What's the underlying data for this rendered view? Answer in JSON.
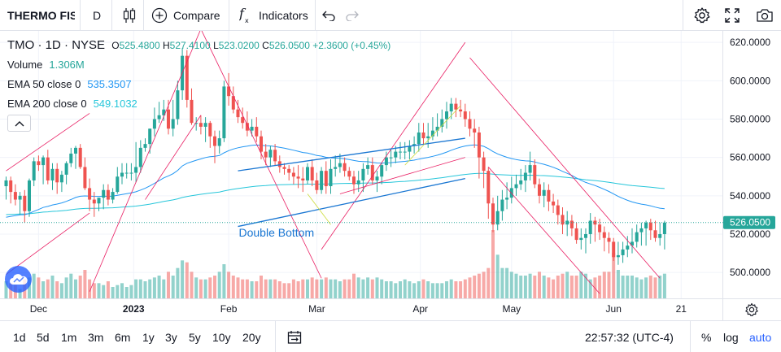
{
  "toolbar": {
    "symbol": "THERMO FISHER",
    "interval": "D",
    "compare_label": "Compare",
    "indicators_label": "Indicators"
  },
  "legend": {
    "ticker": "TMO",
    "timeframe": "1D",
    "exchange": "NYSE",
    "open_label": "O",
    "open": "525.4800",
    "high_label": "H",
    "high": "527.4100",
    "low_label": "L",
    "low": "523.0200",
    "close_label": "C",
    "close": "526.0500",
    "change": "+2.3600 (+0.45%)",
    "volume_label": "Volume",
    "volume": "1.306M",
    "ema50_label": "EMA 50 close 0",
    "ema50": "535.3507",
    "ema200_label": "EMA 200 close 0",
    "ema200": "549.1032"
  },
  "bottombar": {
    "ranges": [
      "1d",
      "5d",
      "1m",
      "3m",
      "6m",
      "1y",
      "3y",
      "5y",
      "10y",
      "20y"
    ],
    "clock": "22:57:32 (UTC-4)",
    "percent_label": "%",
    "log_label": "log",
    "auto_label": "auto"
  },
  "colors": {
    "up": "#26a69a",
    "down": "#ef5350",
    "ema50": "#2196f3",
    "ema200": "#26c6da",
    "trendline_pink": "#e91e63",
    "trendline_blue": "#1976d2",
    "accent": "#2962ff"
  },
  "chart_data": {
    "type": "candlestick",
    "series_name": "TMO",
    "y_axis": {
      "ticks": [
        "620.0000",
        "600.0000",
        "580.0000",
        "560.0000",
        "540.0000",
        "520.0000",
        "500.0000"
      ],
      "ylim": [
        486.5,
        626
      ]
    },
    "x_axis": {
      "labels": [
        "Dec",
        "2023",
        "Feb",
        "Mar",
        "Apr",
        "May",
        "Jun",
        "21"
      ],
      "label_dates": [
        "2022-12-01",
        "2023-01-01",
        "2023-02-01",
        "2023-03-01",
        "2023-04-01",
        "2023-05-01",
        "2023-06-01",
        "2023-06-21"
      ]
    },
    "last_price_label": "526.0500",
    "annotation": "Double Bottom",
    "dates": [
      "2022-11-21",
      "2022-11-22",
      "2022-11-23",
      "2022-11-25",
      "2022-11-28",
      "2022-11-29",
      "2022-11-30",
      "2022-12-01",
      "2022-12-02",
      "2022-12-05",
      "2022-12-06",
      "2022-12-07",
      "2022-12-08",
      "2022-12-09",
      "2022-12-12",
      "2022-12-13",
      "2022-12-14",
      "2022-12-15",
      "2022-12-16",
      "2022-12-19",
      "2022-12-20",
      "2022-12-21",
      "2022-12-22",
      "2022-12-23",
      "2022-12-27",
      "2022-12-28",
      "2022-12-29",
      "2022-12-30",
      "2023-01-03",
      "2023-01-04",
      "2023-01-05",
      "2023-01-06",
      "2023-01-09",
      "2023-01-10",
      "2023-01-11",
      "2023-01-12",
      "2023-01-13",
      "2023-01-17",
      "2023-01-18",
      "2023-01-19",
      "2023-01-20",
      "2023-01-23",
      "2023-01-24",
      "2023-01-25",
      "2023-01-26",
      "2023-01-27",
      "2023-01-30",
      "2023-01-31",
      "2023-02-01",
      "2023-02-02",
      "2023-02-03",
      "2023-02-06",
      "2023-02-07",
      "2023-02-08",
      "2023-02-09",
      "2023-02-10",
      "2023-02-13",
      "2023-02-14",
      "2023-02-15",
      "2023-02-16",
      "2023-02-17",
      "2023-02-21",
      "2023-02-22",
      "2023-02-23",
      "2023-02-24",
      "2023-02-27",
      "2023-02-28",
      "2023-03-01",
      "2023-03-02",
      "2023-03-03",
      "2023-03-06",
      "2023-03-07",
      "2023-03-08",
      "2023-03-09",
      "2023-03-10",
      "2023-03-13",
      "2023-03-14",
      "2023-03-15",
      "2023-03-16",
      "2023-03-17",
      "2023-03-20",
      "2023-03-21",
      "2023-03-22",
      "2023-03-23",
      "2023-03-24",
      "2023-03-27",
      "2023-03-28",
      "2023-03-29",
      "2023-03-30",
      "2023-03-31",
      "2023-04-03",
      "2023-04-04",
      "2023-04-05",
      "2023-04-06",
      "2023-04-10",
      "2023-04-11",
      "2023-04-12",
      "2023-04-13",
      "2023-04-14",
      "2023-04-17",
      "2023-04-18",
      "2023-04-19",
      "2023-04-20",
      "2023-04-21",
      "2023-04-24",
      "2023-04-25",
      "2023-04-26",
      "2023-04-27",
      "2023-04-28",
      "2023-05-01",
      "2023-05-02",
      "2023-05-03",
      "2023-05-04",
      "2023-05-05",
      "2023-05-08",
      "2023-05-09",
      "2023-05-10",
      "2023-05-11",
      "2023-05-12",
      "2023-05-15",
      "2023-05-16",
      "2023-05-17",
      "2023-05-18",
      "2023-05-19",
      "2023-05-22",
      "2023-05-23",
      "2023-05-24",
      "2023-05-25",
      "2023-05-26",
      "2023-05-30",
      "2023-05-31",
      "2023-06-01",
      "2023-06-02",
      "2023-06-05",
      "2023-06-06",
      "2023-06-07",
      "2023-06-08",
      "2023-06-09",
      "2023-06-12",
      "2023-06-13",
      "2023-06-14",
      "2023-06-15",
      "2023-06-16"
    ],
    "open": [
      545,
      548,
      542,
      538,
      540,
      532,
      548,
      558,
      556,
      560,
      548,
      554,
      547,
      551,
      557,
      562,
      565,
      555,
      544,
      538,
      536,
      539,
      543,
      538,
      542,
      550,
      552,
      552,
      552,
      555,
      565,
      567,
      575,
      580,
      582,
      585,
      575,
      580,
      595,
      613,
      590,
      578,
      578,
      576,
      578,
      571,
      566,
      570,
      597,
      592,
      585,
      581,
      578,
      574,
      576,
      571,
      563,
      560,
      564,
      558,
      555,
      554,
      552,
      550,
      549,
      548,
      555,
      548,
      543,
      553,
      545,
      554,
      555,
      557,
      553,
      550,
      546,
      548,
      554,
      556,
      548,
      550,
      556,
      560,
      560,
      563,
      563,
      563,
      566,
      567,
      573,
      570,
      571,
      574,
      576,
      580,
      584,
      588,
      585,
      584,
      580,
      575,
      573,
      560,
      553,
      536,
      525,
      532,
      538,
      539,
      544,
      546,
      548,
      552,
      556,
      546,
      540,
      543,
      537,
      535,
      530,
      525,
      527,
      523,
      517,
      518,
      520,
      527,
      525,
      521,
      518,
      516,
      508,
      509,
      512,
      514,
      516,
      521,
      523,
      526,
      522,
      518,
      520
    ],
    "high": [
      550,
      550,
      546,
      542,
      543,
      549,
      560,
      561,
      561,
      564,
      557,
      557,
      553,
      558,
      565,
      566,
      567,
      560,
      549,
      542,
      538,
      546,
      546,
      544,
      555,
      557,
      557,
      557,
      568,
      569,
      570,
      575,
      586,
      589,
      590,
      590,
      590,
      600,
      617,
      616,
      596,
      581,
      582,
      581,
      579,
      574,
      574,
      600,
      604,
      597,
      590,
      586,
      584,
      580,
      581,
      574,
      567,
      566,
      567,
      561,
      557,
      556,
      555,
      556,
      555,
      557,
      559,
      552,
      555,
      558,
      559,
      561,
      562,
      560,
      555,
      553,
      553,
      557,
      560,
      560,
      553,
      557,
      563,
      564,
      566,
      568,
      568,
      569,
      571,
      578,
      578,
      578,
      581,
      583,
      585,
      589,
      591,
      591,
      590,
      588,
      584,
      580,
      576,
      563,
      555,
      539,
      540,
      543,
      547,
      550,
      551,
      554,
      556,
      563,
      559,
      549,
      547,
      546,
      541,
      538,
      534,
      532,
      530,
      526,
      523,
      523,
      531,
      529,
      528,
      524,
      521,
      518,
      516,
      516,
      519,
      523,
      525,
      526,
      527,
      528,
      527,
      526,
      527
    ],
    "low": [
      538,
      536,
      535,
      530,
      526,
      529,
      545,
      553,
      546,
      546,
      543,
      541,
      542,
      546,
      555,
      554,
      554,
      543,
      532,
      529,
      532,
      533,
      535,
      536,
      541,
      546,
      549,
      548,
      547,
      552,
      563,
      562,
      571,
      578,
      579,
      572,
      571,
      577,
      590,
      586,
      577,
      574,
      572,
      568,
      565,
      557,
      562,
      568,
      587,
      583,
      578,
      575,
      571,
      571,
      568,
      559,
      556,
      555,
      556,
      552,
      551,
      548,
      546,
      544,
      542,
      546,
      545,
      541,
      541,
      541,
      541,
      550,
      552,
      550,
      548,
      541,
      542,
      542,
      551,
      546,
      542,
      546,
      553,
      555,
      557,
      559,
      559,
      559,
      562,
      563,
      567,
      565,
      569,
      571,
      573,
      575,
      580,
      581,
      581,
      576,
      571,
      565,
      549,
      544,
      528,
      521,
      522,
      527,
      533,
      536,
      540,
      543,
      542,
      548,
      544,
      536,
      534,
      532,
      531,
      525,
      520,
      519,
      519,
      515,
      512,
      510,
      515,
      516,
      517,
      511,
      510,
      506,
      504,
      505,
      508,
      510,
      513,
      514,
      514,
      517,
      516,
      514,
      512
    ],
    "close": [
      548,
      542,
      538,
      540,
      532,
      548,
      558,
      556,
      560,
      548,
      554,
      547,
      551,
      557,
      562,
      565,
      555,
      544,
      538,
      536,
      539,
      543,
      538,
      542,
      550,
      552,
      552,
      552,
      555,
      565,
      567,
      575,
      580,
      582,
      585,
      575,
      580,
      595,
      613,
      590,
      578,
      578,
      576,
      578,
      571,
      566,
      570,
      597,
      592,
      585,
      581,
      578,
      574,
      576,
      571,
      563,
      560,
      564,
      558,
      555,
      554,
      552,
      550,
      549,
      548,
      555,
      548,
      543,
      553,
      545,
      554,
      555,
      557,
      553,
      550,
      546,
      548,
      554,
      556,
      548,
      550,
      556,
      560,
      560,
      563,
      563,
      563,
      566,
      567,
      573,
      570,
      571,
      574,
      576,
      580,
      584,
      588,
      585,
      584,
      580,
      575,
      573,
      560,
      553,
      536,
      525,
      532,
      538,
      539,
      544,
      546,
      548,
      552,
      556,
      546,
      540,
      543,
      537,
      535,
      530,
      525,
      527,
      523,
      517,
      518,
      520,
      527,
      525,
      521,
      518,
      516,
      508,
      509,
      512,
      514,
      516,
      521,
      523,
      526,
      522,
      518,
      520,
      526
    ],
    "volume_m": [
      0.9,
      0.8,
      0.7,
      0.5,
      1.0,
      1.1,
      1.3,
      1.1,
      0.9,
      1.0,
      1.2,
      0.9,
      0.8,
      1.1,
      1.3,
      1.0,
      1.2,
      1.5,
      1.0,
      0.8,
      0.8,
      0.7,
      0.9,
      0.6,
      0.7,
      0.8,
      0.6,
      0.7,
      1.0,
      1.0,
      0.9,
      1.0,
      1.1,
      1.2,
      1.0,
      1.4,
      1.2,
      1.6,
      2.0,
      1.9,
      1.4,
      1.1,
      1.0,
      1.0,
      1.1,
      1.2,
      1.4,
      1.8,
      1.4,
      1.2,
      1.1,
      1.0,
      1.0,
      0.9,
      0.9,
      1.2,
      1.0,
      1.0,
      1.0,
      0.9,
      0.8,
      0.8,
      1.0,
      0.9,
      1.0,
      1.0,
      1.1,
      1.0,
      1.0,
      1.1,
      1.0,
      1.0,
      0.9,
      1.0,
      1.0,
      1.3,
      1.1,
      1.0,
      1.1,
      1.0,
      1.1,
      1.0,
      0.9,
      0.9,
      0.8,
      0.9,
      1.0,
      0.9,
      0.8,
      0.9,
      1.0,
      0.9,
      0.8,
      0.8,
      0.8,
      0.9,
      1.0,
      0.9,
      0.9,
      1.0,
      1.1,
      1.2,
      1.3,
      1.4,
      1.6,
      3.6,
      2.3,
      1.6,
      1.6,
      1.4,
      1.3,
      1.2,
      1.2,
      1.3,
      1.2,
      1.4,
      1.2,
      1.1,
      1.0,
      1.2,
      1.3,
      1.4,
      1.2,
      1.2,
      1.4,
      1.3,
      1.0,
      1.1,
      1.2,
      1.4,
      1.4,
      2.4,
      1.5,
      1.2,
      1.2,
      1.2,
      1.1,
      1.0,
      1.1,
      1.2,
      1.1,
      1.2,
      1.3
    ]
  }
}
